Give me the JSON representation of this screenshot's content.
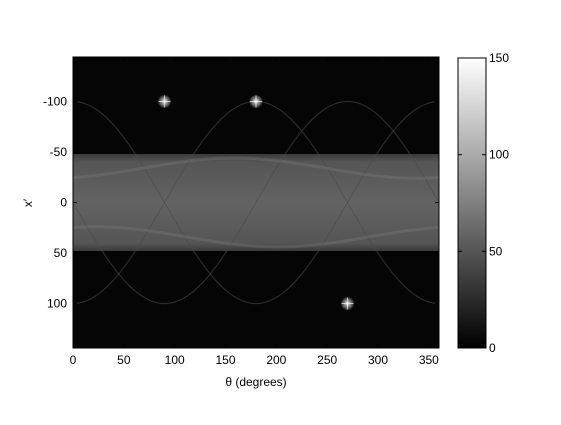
{
  "chart_data": {
    "type": "heatmap",
    "title": "",
    "xlabel": "θ (degrees)",
    "ylabel": "x′",
    "xlim": [
      0,
      360
    ],
    "ylim": [
      -144,
      144
    ],
    "y_inverted": true,
    "x_ticks": [
      {
        "value": 0,
        "label": "0"
      },
      {
        "value": 50,
        "label": "50"
      },
      {
        "value": 100,
        "label": "100"
      },
      {
        "value": 150,
        "label": "150"
      },
      {
        "value": 200,
        "label": "200"
      },
      {
        "value": 250,
        "label": "250"
      },
      {
        "value": 300,
        "label": "300"
      },
      {
        "value": 350,
        "label": "350"
      }
    ],
    "y_ticks": [
      {
        "value": -100,
        "label": "-100"
      },
      {
        "value": -50,
        "label": "-50"
      },
      {
        "value": 0,
        "label": "0"
      },
      {
        "value": 50,
        "label": "50"
      },
      {
        "value": 100,
        "label": "100"
      }
    ],
    "colormap": "gray",
    "colorbar": {
      "range": [
        0,
        150
      ],
      "ticks": [
        {
          "value": 0,
          "label": "0"
        },
        {
          "value": 50,
          "label": "50"
        },
        {
          "value": 100,
          "label": "100"
        },
        {
          "value": 150,
          "label": "150"
        }
      ]
    },
    "band": {
      "description_values": "bright horizontal band of intensity",
      "y_min": -48,
      "y_max": 48,
      "intensity": 72
    },
    "bright_points": [
      {
        "theta": 90,
        "x": -100,
        "intensity": 150
      },
      {
        "theta": 180,
        "x": -100,
        "intensity": 150
      },
      {
        "theta": 270,
        "x": 100,
        "intensity": 150
      }
    ],
    "sinusoid_curves": [
      {
        "amplitude": 100,
        "phase_deg": 0,
        "intensity": 20
      },
      {
        "amplitude": 100,
        "phase_deg": 90,
        "intensity": 20
      },
      {
        "amplitude": 100,
        "phase_deg": 180,
        "intensity": 20
      }
    ],
    "grid": false,
    "legend": "none"
  }
}
